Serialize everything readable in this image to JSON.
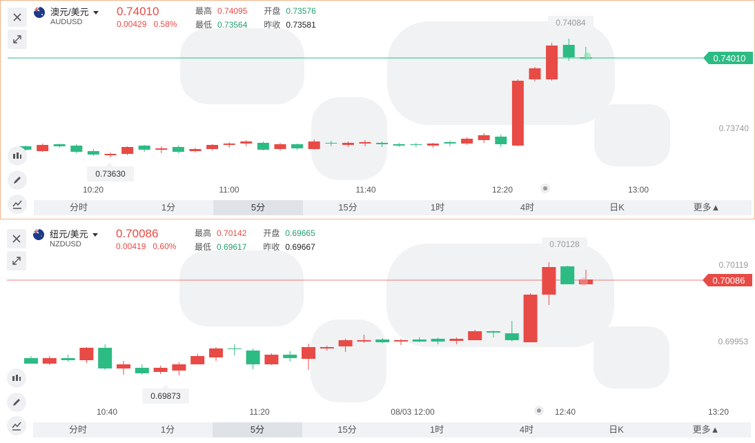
{
  "panels": [
    {
      "pair": "澳元/美元",
      "code": "AUDUSD",
      "price": "0.74010",
      "change": "0.00429",
      "change_pct": "0.58%",
      "high_label": "最高",
      "high": "0.74095",
      "open_label": "开盘",
      "open": "0.73576",
      "low_label": "最低",
      "low": "0.73564",
      "prev_label": "昨收",
      "prev": "0.73581",
      "max_tag": "0.74084",
      "min_tag": "0.73630",
      "price_tag": "0.74010",
      "axis_label": "0.73740",
      "times": [
        "10:20",
        "11:00",
        "11:40",
        "12:20",
        "13:00"
      ]
    },
    {
      "pair": "纽元/美元",
      "code": "NZDUSD",
      "price": "0.70086",
      "change": "0.00419",
      "change_pct": "0.60%",
      "high_label": "最高",
      "high": "0.70142",
      "open_label": "开盘",
      "open": "0.69665",
      "low_label": "最低",
      "low": "0.69617",
      "prev_label": "昨收",
      "prev": "0.69667",
      "max_tag": "0.70128",
      "min_tag": "0.69873",
      "price_tag": "0.70086",
      "axis_label_top": "0.70119",
      "axis_label": "0.69953",
      "times": [
        "10:40",
        "11:20",
        "08/03 12:00",
        "12:40",
        "13:20"
      ]
    }
  ],
  "timeframes": [
    "分时",
    "1分",
    "5分",
    "15分",
    "1时",
    "4时",
    "日K",
    "更多▲"
  ],
  "selected_timeframe": "5分",
  "colors": {
    "up": "#e84a45",
    "down": "#2dbb84",
    "accent_line_1": "#2dbb84",
    "accent_line_2": "#e84a45"
  },
  "icons": [
    "close-icon",
    "expand-icon",
    "candlestick-icon",
    "pen-icon",
    "indicator-icon"
  ]
}
